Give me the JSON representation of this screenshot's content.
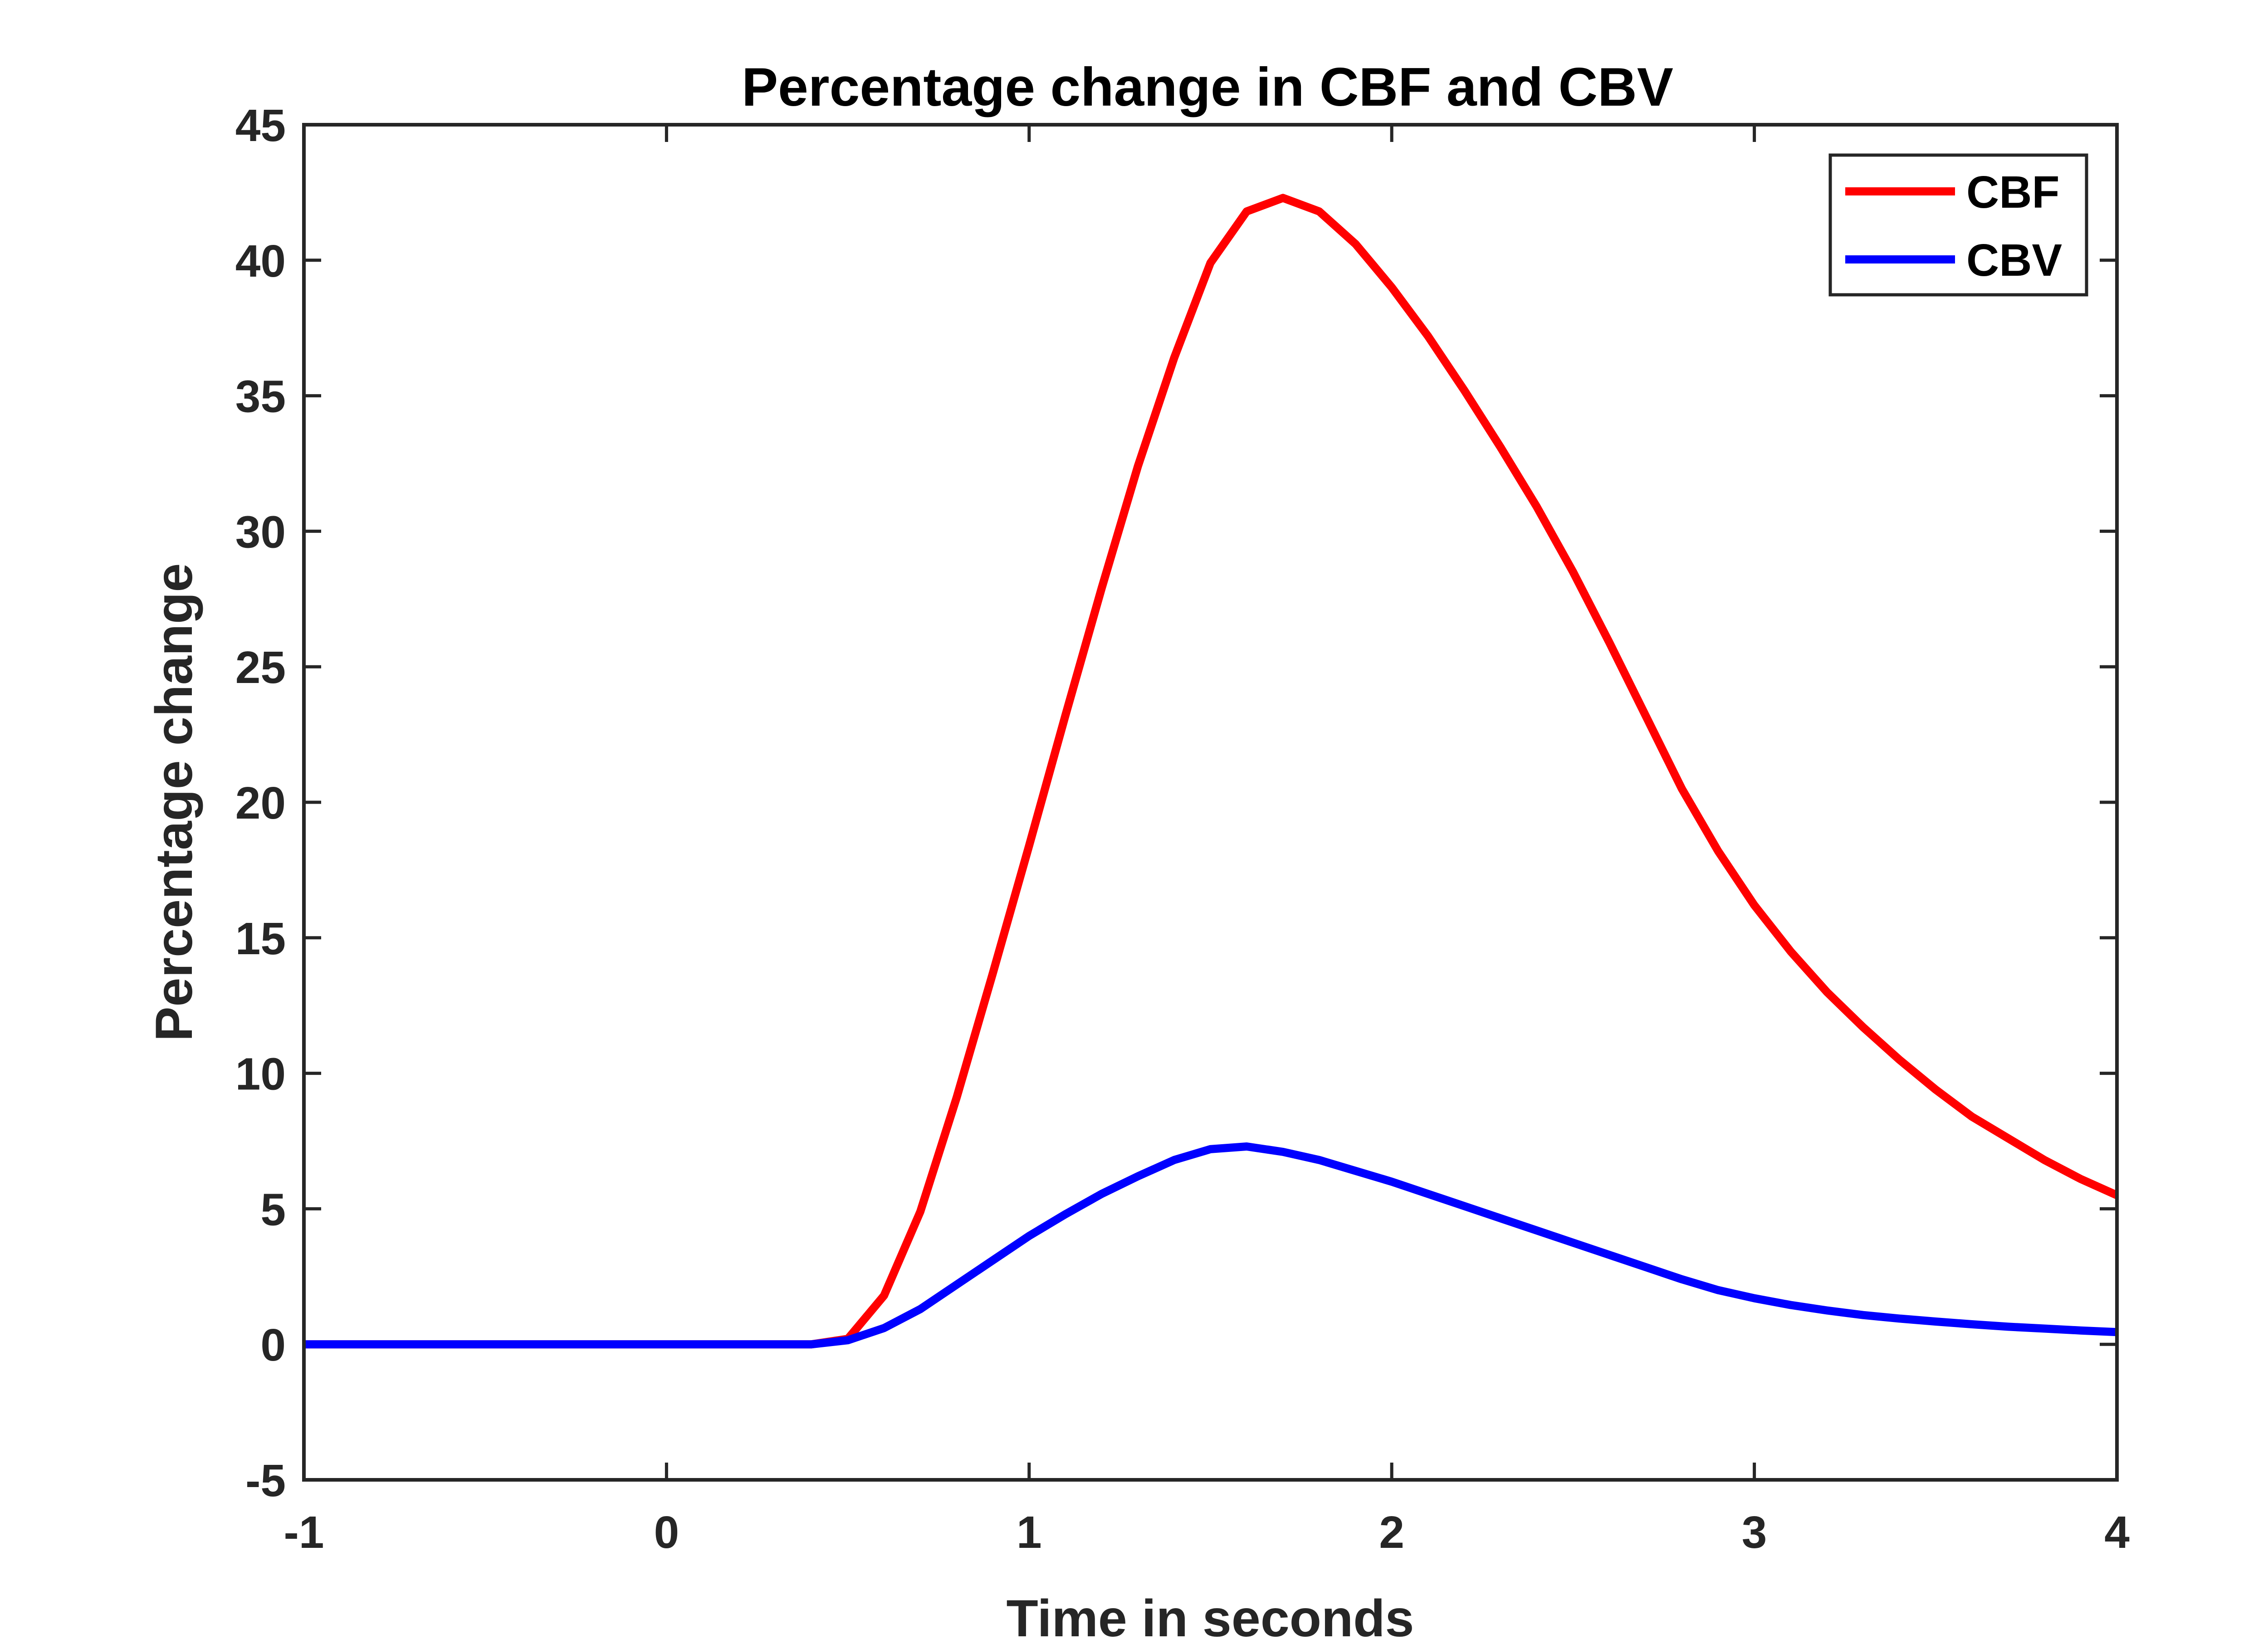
{
  "chart_data": {
    "type": "line",
    "title": "Percentage change in CBF and CBV",
    "xlabel": "Time in seconds",
    "ylabel": "Percentage change",
    "xlim": [
      -1,
      4
    ],
    "ylim": [
      -5,
      45
    ],
    "xticks": [
      -1,
      0,
      1,
      2,
      3,
      4
    ],
    "xtick_labels": [
      "-1",
      "0",
      "1",
      "2",
      "3",
      "4"
    ],
    "yticks": [
      -5,
      0,
      5,
      10,
      15,
      20,
      25,
      30,
      35,
      40,
      45
    ],
    "ytick_labels": [
      "-5",
      "0",
      "5",
      "10",
      "15",
      "20",
      "25",
      "30",
      "35",
      "40",
      "45"
    ],
    "grid": false,
    "legend_position": "top-right",
    "series": [
      {
        "name": "CBF",
        "color": "#ff0000",
        "x": [
          -1,
          -0.5,
          0,
          0.4,
          0.5,
          0.6,
          0.7,
          0.8,
          0.9,
          1.0,
          1.1,
          1.2,
          1.3,
          1.4,
          1.5,
          1.6,
          1.7,
          1.8,
          1.9,
          2.0,
          2.1,
          2.2,
          2.3,
          2.4,
          2.5,
          2.6,
          2.7,
          2.8,
          2.9,
          3.0,
          3.1,
          3.2,
          3.3,
          3.4,
          3.5,
          3.6,
          3.7,
          3.8,
          3.9,
          4.0
        ],
        "y": [
          0,
          0,
          0,
          0,
          0.2,
          1.8,
          4.9,
          9.1,
          13.7,
          18.4,
          23.2,
          27.9,
          32.4,
          36.4,
          39.9,
          41.8,
          42.3,
          41.8,
          40.6,
          39.0,
          37.2,
          35.2,
          33.1,
          30.9,
          28.5,
          25.9,
          23.2,
          20.5,
          18.2,
          16.2,
          14.5,
          13.0,
          11.7,
          10.5,
          9.4,
          8.4,
          7.6,
          6.8,
          6.1,
          5.5
        ]
      },
      {
        "name": "CBV",
        "color": "#0000ff",
        "x": [
          -1,
          -0.5,
          0,
          0.4,
          0.5,
          0.6,
          0.7,
          0.8,
          0.9,
          1.0,
          1.1,
          1.2,
          1.3,
          1.4,
          1.5,
          1.6,
          1.7,
          1.8,
          1.9,
          2.0,
          2.1,
          2.2,
          2.3,
          2.4,
          2.5,
          2.6,
          2.7,
          2.8,
          2.9,
          3.0,
          3.1,
          3.2,
          3.3,
          3.4,
          3.5,
          3.6,
          3.7,
          3.8,
          3.9,
          4.0
        ],
        "y": [
          0,
          0,
          0,
          0,
          0.15,
          0.6,
          1.3,
          2.2,
          3.1,
          4.0,
          4.8,
          5.55,
          6.2,
          6.8,
          7.2,
          7.3,
          7.1,
          6.8,
          6.4,
          6.0,
          5.55,
          5.1,
          4.65,
          4.2,
          3.75,
          3.3,
          2.85,
          2.4,
          2.0,
          1.7,
          1.45,
          1.25,
          1.08,
          0.95,
          0.84,
          0.74,
          0.65,
          0.58,
          0.51,
          0.45
        ]
      }
    ]
  }
}
